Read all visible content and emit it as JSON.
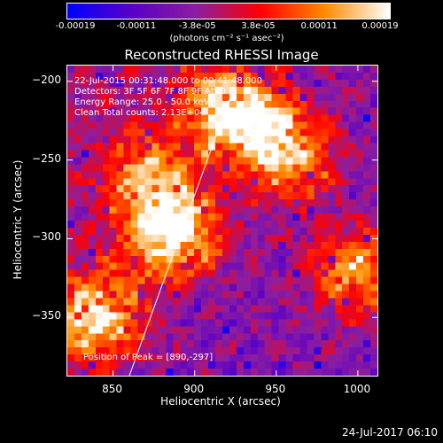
{
  "colorbar": {
    "tick_labels": [
      "-0.00019",
      "-0.00011",
      "-3.8e-05",
      "3.8e-05",
      "0.00011",
      "0.00019"
    ],
    "units": "(photons cm⁻² s⁻¹ asec⁻²)",
    "colors": [
      "#0000ff",
      "#5a00c8",
      "#8c1ea0",
      "#ff0000",
      "#ff8c00",
      "#ffffff"
    ]
  },
  "chart_data": {
    "type": "heatmap",
    "title": "Reconstructed RHESSI Image",
    "xlabel": "Heliocentric X (arcsec)",
    "ylabel": "Heliocentric Y (arcsec)",
    "xlim": [
      822,
      1012
    ],
    "ylim": [
      -387,
      -190
    ],
    "xticks": [
      "850",
      "900",
      "950",
      "1000"
    ],
    "yticks": [
      "-200",
      "-250",
      "-300",
      "-350"
    ],
    "value_range": [
      -0.00019,
      0.00019
    ],
    "annotations": [
      "22-Jul-2015 00:31:48.000 to 00:41:48.000",
      "Detectors: 3F 5F 6F 7F 8F 9F Att 0",
      "Energy Range: 25.0 - 50.0 keV",
      "Clean    Total counts: 2.13E+04",
      "Position of Peak = [890,-297]"
    ],
    "limb_line": {
      "x": [
        860,
        921
      ],
      "y": [
        -387,
        -212
      ]
    },
    "sources": [
      {
        "x": 840,
        "y": -350,
        "level": 0.9
      },
      {
        "x": 888,
        "y": -296,
        "level": 1.0
      },
      {
        "x": 936,
        "y": -225,
        "level": 0.85
      },
      {
        "x": 960,
        "y": -250,
        "level": 0.75
      },
      {
        "x": 1000,
        "y": -320,
        "level": 0.8
      },
      {
        "x": 870,
        "y": -260,
        "level": 0.7
      },
      {
        "x": 915,
        "y": -215,
        "level": 0.65
      }
    ]
  },
  "footer": {
    "timestamp": "24-Jul-2017 06:10"
  }
}
